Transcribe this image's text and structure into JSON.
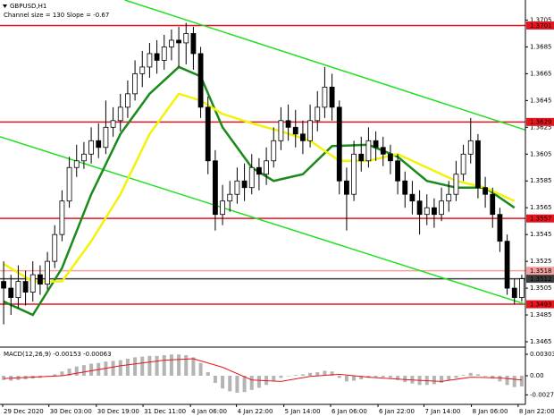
{
  "chart_data": {
    "type": "candlestick",
    "title": "GBPUSD,H1",
    "subtitle": "Channel size = 130 Slope = -0.67",
    "up_color": "#ffffff",
    "down_color": "#000000",
    "wick_color": "#000000",
    "xlim": [
      -0.5,
      71.5
    ],
    "xticks": [
      {
        "value": -0.13,
        "label": "29 Dec 2020"
      },
      {
        "value": 6.2,
        "label": "30 Dec 03:00"
      },
      {
        "value": 12.7,
        "label": "30 Dec 19:00"
      },
      {
        "value": 19.1,
        "label": "31 Dec 11:00"
      },
      {
        "value": 25.6,
        "label": "4 Jan 06:00"
      },
      {
        "value": 31.9,
        "label": "4 Jan 22:00"
      },
      {
        "value": 38.4,
        "label": "5 Jan 14:00"
      },
      {
        "value": 44.8,
        "label": "6 Jan 06:00"
      },
      {
        "value": 51.3,
        "label": "6 Jan 22:00"
      },
      {
        "value": 57.6,
        "label": "7 Jan 14:00"
      },
      {
        "value": 64.1,
        "label": "8 Jan 06:00"
      },
      {
        "value": 70.5,
        "label": "8 Jan 22:00"
      }
    ],
    "ylim": [
      1.3461,
      1.372
    ],
    "yticks": [
      1.3705,
      1.3685,
      1.3665,
      1.3645,
      1.3625,
      1.3605,
      1.3585,
      1.3565,
      1.3545,
      1.3525,
      1.3505,
      1.3485,
      1.3465
    ],
    "open": [
      1.351,
      1.3505,
      1.3498,
      1.351,
      1.3502,
      1.3515,
      1.3508,
      1.3525,
      1.3545,
      1.357,
      1.3595,
      1.36,
      1.3605,
      1.3615,
      1.361,
      1.3625,
      1.363,
      1.364,
      1.365,
      1.3665,
      1.367,
      1.368,
      1.3675,
      1.3685,
      1.369,
      1.3688,
      1.3695,
      1.368,
      1.364,
      1.36,
      1.356,
      1.357,
      1.3575,
      1.3585,
      1.358,
      1.3595,
      1.359,
      1.36,
      1.3615,
      1.363,
      1.3625,
      1.362,
      1.3615,
      1.363,
      1.364,
      1.3655,
      1.364,
      1.3585,
      1.3575,
      1.3605,
      1.36,
      1.3615,
      1.361,
      1.3605,
      1.36,
      1.3585,
      1.3575,
      1.357,
      1.356,
      1.3565,
      1.356,
      1.357,
      1.3575,
      1.359,
      1.3605,
      1.3615,
      1.358,
      1.3575,
      1.356,
      1.354,
      1.3505,
      1.3498
    ],
    "high": [
      1.3525,
      1.3515,
      1.3522,
      1.3518,
      1.3525,
      1.3522,
      1.3532,
      1.3552,
      1.3578,
      1.3603,
      1.3612,
      1.3614,
      1.3625,
      1.3628,
      1.3645,
      1.364,
      1.365,
      1.366,
      1.3675,
      1.3682,
      1.3688,
      1.369,
      1.3694,
      1.3698,
      1.37,
      1.3703,
      1.37,
      1.3685,
      1.3648,
      1.3608,
      1.3582,
      1.3585,
      1.3595,
      1.3598,
      1.3605,
      1.3602,
      1.361,
      1.3625,
      1.364,
      1.3642,
      1.3638,
      1.363,
      1.3642,
      1.3652,
      1.367,
      1.3665,
      1.3645,
      1.3595,
      1.3615,
      1.3618,
      1.3625,
      1.3622,
      1.3618,
      1.3612,
      1.3605,
      1.3592,
      1.3585,
      1.3578,
      1.3575,
      1.3572,
      1.358,
      1.3585,
      1.36,
      1.3612,
      1.3632,
      1.362,
      1.3588,
      1.358,
      1.3565,
      1.3545,
      1.3512,
      1.3515
    ],
    "low": [
      1.3478,
      1.3485,
      1.349,
      1.3492,
      1.3495,
      1.35,
      1.3504,
      1.352,
      1.354,
      1.3565,
      1.3588,
      1.3594,
      1.3598,
      1.3602,
      1.3605,
      1.3618,
      1.3622,
      1.3632,
      1.3645,
      1.3655,
      1.3662,
      1.3665,
      1.3668,
      1.3675,
      1.367,
      1.3672,
      1.3668,
      1.3632,
      1.359,
      1.3548,
      1.3552,
      1.3562,
      1.3568,
      1.357,
      1.3575,
      1.3578,
      1.3582,
      1.3595,
      1.3608,
      1.3615,
      1.361,
      1.3605,
      1.361,
      1.3622,
      1.3632,
      1.363,
      1.3575,
      1.3548,
      1.357,
      1.3592,
      1.3595,
      1.36,
      1.3596,
      1.359,
      1.3575,
      1.3565,
      1.356,
      1.3545,
      1.3552,
      1.355,
      1.3555,
      1.3562,
      1.357,
      1.3585,
      1.3598,
      1.3572,
      1.3565,
      1.355,
      1.3532,
      1.35,
      1.3493,
      1.3495
    ],
    "close": [
      1.3505,
      1.3498,
      1.351,
      1.3502,
      1.3515,
      1.3508,
      1.3525,
      1.3545,
      1.357,
      1.3595,
      1.36,
      1.3605,
      1.3615,
      1.361,
      1.3625,
      1.363,
      1.364,
      1.365,
      1.3665,
      1.367,
      1.368,
      1.3675,
      1.3685,
      1.369,
      1.3688,
      1.3695,
      1.368,
      1.364,
      1.36,
      1.356,
      1.357,
      1.3575,
      1.3585,
      1.358,
      1.3595,
      1.359,
      1.36,
      1.3615,
      1.363,
      1.3625,
      1.362,
      1.3615,
      1.363,
      1.364,
      1.3655,
      1.364,
      1.3585,
      1.3575,
      1.3605,
      1.36,
      1.3615,
      1.361,
      1.3605,
      1.36,
      1.3585,
      1.3575,
      1.357,
      1.356,
      1.3565,
      1.356,
      1.357,
      1.3575,
      1.359,
      1.3605,
      1.3615,
      1.358,
      1.3575,
      1.356,
      1.354,
      1.3505,
      1.3498,
      1.3512
    ],
    "lines": [
      {
        "color": "#1a8a1a",
        "width": 2.5,
        "x": [
          0,
          4,
          8,
          12,
          16,
          20,
          24,
          27,
          30,
          34,
          37,
          41,
          45,
          50,
          54,
          58,
          62,
          66,
          70
        ],
        "values": [
          1.3495,
          1.3485,
          1.352,
          1.3575,
          1.362,
          1.365,
          1.367,
          1.3663,
          1.3625,
          1.3595,
          1.3585,
          1.359,
          1.3611,
          1.3612,
          1.3603,
          1.3585,
          1.358,
          1.358,
          1.3565
        ]
      },
      {
        "color": "#f2f20a",
        "width": 2.5,
        "x": [
          0,
          4,
          8,
          12,
          16,
          20,
          24,
          27,
          30,
          34,
          38,
          42,
          46,
          50,
          54,
          58,
          62,
          66,
          70
        ],
        "values": [
          1.3523,
          1.351,
          1.351,
          1.354,
          1.3575,
          1.362,
          1.365,
          1.3645,
          1.3635,
          1.3628,
          1.3622,
          1.3615,
          1.36,
          1.36,
          1.3605,
          1.3595,
          1.3585,
          1.358,
          1.357
        ]
      }
    ],
    "channel": [
      {
        "color": "#22e022",
        "x": [
          16.6,
          71.5
        ],
        "values": [
          1.372,
          1.3623
        ]
      },
      {
        "color": "#22e022",
        "x": [
          -0.5,
          71.5
        ],
        "values": [
          1.3618,
          1.3493
        ]
      }
    ],
    "levels": [
      {
        "value": 1.3701,
        "color": "#e8141e"
      },
      {
        "value": 1.3629,
        "color": "#e8141e"
      },
      {
        "value": 1.3557,
        "color": "#e8141e"
      },
      {
        "value": 1.3493,
        "color": "#e8141e"
      },
      {
        "value": 1.3518,
        "color": "#f4a0a0"
      },
      {
        "value": 1.3512,
        "color": "#3c3c3c"
      }
    ],
    "macd": {
      "title": "MACD(12,26,9) -0.00153 -0.00063",
      "color": "#b4b4b4",
      "ylim": [
        -0.00404,
        0.00404
      ],
      "yticks": [
        0.00303,
        {
          "value": 0,
          "label": "0.00"
        },
        -0.0027
      ],
      "values": [
        -0.0006,
        -0.0007,
        -0.0006,
        -0.0005,
        -0.0004,
        -0.0003,
        -0.0001,
        0.0002,
        0.0006,
        0.001,
        0.0013,
        0.0015,
        0.0017,
        0.0018,
        0.002,
        0.0021,
        0.0022,
        0.0024,
        0.0026,
        0.0027,
        0.0028,
        0.0028,
        0.0029,
        0.003,
        0.003,
        0.0029,
        0.0026,
        0.0018,
        0.0005,
        -0.001,
        -0.0018,
        -0.0022,
        -0.0024,
        -0.0023,
        -0.002,
        -0.0017,
        -0.0013,
        -0.0008,
        -0.0003,
        0,
        0.0001,
        0.0002,
        0.0004,
        0.0005,
        0.0007,
        0.0006,
        -0.0003,
        -0.0008,
        -0.0007,
        -0.0005,
        -0.0003,
        -0.0002,
        -0.0002,
        -0.0003,
        -0.0006,
        -0.0009,
        -0.0011,
        -0.0013,
        -0.0013,
        -0.0012,
        -0.001,
        -0.0007,
        -0.0003,
        0.0001,
        0.0004,
        0.0002,
        -0.0001,
        -0.0004,
        -0.0008,
        -0.0013,
        -0.0016,
        -0.0015
      ],
      "signal": {
        "color": "#e8141e",
        "x": [
          0,
          8,
          16,
          22,
          26,
          30,
          34,
          38,
          42,
          46,
          50,
          56,
          60,
          64,
          68,
          71
        ],
        "values": [
          -0.0004,
          0,
          0.0014,
          0.0022,
          0.0024,
          0.0012,
          -0.0006,
          -0.0008,
          -0.0001,
          0.0002,
          -0.0002,
          -0.0006,
          -0.0008,
          -0.0002,
          -0.0003,
          -0.0006
        ]
      }
    }
  }
}
